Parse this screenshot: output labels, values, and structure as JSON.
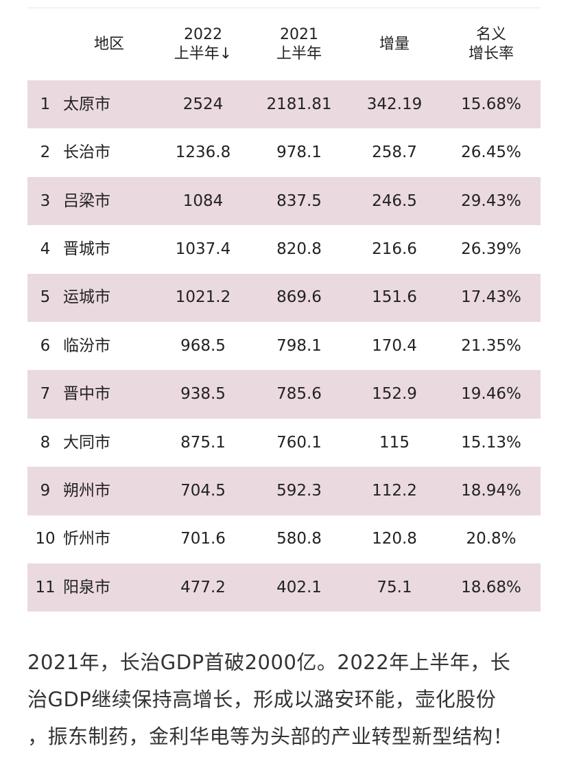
{
  "table": {
    "headers": {
      "rank": "",
      "region": "地区",
      "h2022_line1": "2022",
      "h2022_line2": "上半年↓",
      "h2021_line1": "2021",
      "h2021_line2": "上半年",
      "increase": "增量",
      "rate_line1": "名义",
      "rate_line2": "增长率"
    },
    "rows": [
      {
        "rank": "1",
        "city": "太原市",
        "h2022": "2524",
        "h2021": "2181.81",
        "increase": "342.19",
        "rate": "15.68%"
      },
      {
        "rank": "2",
        "city": "长治市",
        "h2022": "1236.8",
        "h2021": "978.1",
        "increase": "258.7",
        "rate": "26.45%"
      },
      {
        "rank": "3",
        "city": "吕梁市",
        "h2022": "1084",
        "h2021": "837.5",
        "increase": "246.5",
        "rate": "29.43%"
      },
      {
        "rank": "4",
        "city": "晋城市",
        "h2022": "1037.4",
        "h2021": "820.8",
        "increase": "216.6",
        "rate": "26.39%"
      },
      {
        "rank": "5",
        "city": "运城市",
        "h2022": "1021.2",
        "h2021": "869.6",
        "increase": "151.6",
        "rate": "17.43%"
      },
      {
        "rank": "6",
        "city": "临汾市",
        "h2022": "968.5",
        "h2021": "798.1",
        "increase": "170.4",
        "rate": "21.35%"
      },
      {
        "rank": "7",
        "city": "晋中市",
        "h2022": "938.5",
        "h2021": "785.6",
        "increase": "152.9",
        "rate": "19.46%"
      },
      {
        "rank": "8",
        "city": "大同市",
        "h2022": "875.1",
        "h2021": "760.1",
        "increase": "115",
        "rate": "15.13%"
      },
      {
        "rank": "9",
        "city": "朔州市",
        "h2022": "704.5",
        "h2021": "592.3",
        "increase": "112.2",
        "rate": "18.94%"
      },
      {
        "rank": "10",
        "city": "忻州市",
        "h2022": "701.6",
        "h2021": "580.8",
        "increase": "120.8",
        "rate": "20.8%"
      },
      {
        "rank": "11",
        "city": "阳泉市",
        "h2022": "477.2",
        "h2021": "402.1",
        "increase": "75.1",
        "rate": "18.68%"
      }
    ]
  },
  "paragraph": {
    "line1": "2021年，长治GDP首破2000亿。2022年上半年，长",
    "line2": "治GDP继续保持高增长，形成以潞安环能，壶化股份",
    "line3": "，振东制药，金利华电等为头部的产业转型新型结构！"
  },
  "colors": {
    "row_shade": "#ead9df",
    "text": "#222222"
  }
}
